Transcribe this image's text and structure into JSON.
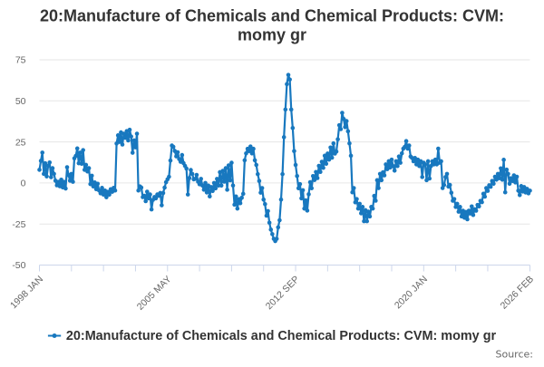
{
  "chart": {
    "title": "20:Manufacture of Chemicals and Chemical Products: CVM: momy gr",
    "title_lines": [
      "20:Manufacture of Chemicals and Chemical Products: CVM:",
      "momy gr"
    ],
    "legend": {
      "label": "20:Manufacture of Chemicals and Chemical Products: CVM: momy gr"
    },
    "source_label": "Source:"
  },
  "chart_data": {
    "type": "line",
    "title": "20:Manufacture of Chemicals and Chemical Products: CVM: momy gr",
    "series": [
      {
        "name": "20:Manufacture of Chemicals and Chemical Products: CVM: momy gr",
        "values": [
          8,
          13.5,
          18.5,
          5.5,
          12,
          4,
          10.5,
          12.5,
          3.5,
          9,
          5.5,
          1.4,
          -1.4,
          0.7,
          -2,
          2,
          -2.7,
          0.7,
          -3.4,
          9.6,
          4.8,
          1.4,
          5.5,
          0.7,
          15,
          16.5,
          21,
          12,
          18.5,
          11.7,
          20,
          8,
          11,
          7,
          9,
          -0.7,
          4.4,
          -2.1,
          0.3,
          -3.8,
          -0.5,
          -4.6,
          -6.3,
          -3,
          -7.1,
          -4.6,
          -8.7,
          -5.4,
          -7.1,
          -3.8,
          -5.4,
          -3,
          -4.6,
          24,
          29,
          25,
          30.8,
          23.4,
          30,
          27.5,
          31.6,
          25.9,
          32.4,
          28.3,
          18.4,
          25.9,
          21.7,
          30,
          -4.6,
          -2.1,
          -2.8,
          -8.6,
          -7.8,
          -11.1,
          -5.3,
          -9.4,
          -7,
          -16.1,
          -10.3,
          -8.6,
          -9.4,
          -7,
          -7.8,
          -6.1,
          -13.6,
          -6.1,
          -2.8,
          0.5,
          2.2,
          3.8,
          13.7,
          22.8,
          22,
          19.5,
          16.2,
          18.7,
          14.6,
          12.9,
          17,
          12.1,
          10.4,
          8.8,
          -7,
          3,
          7.9,
          5.5,
          2.2,
          2.5,
          4.9,
          0.8,
          -0.8,
          2.5,
          -1.6,
          -4.1,
          0,
          -5.8,
          -1.6,
          -8.2,
          -2.5,
          -4.9,
          0,
          -3.3,
          2.5,
          -1.6,
          6.6,
          -1.6,
          7.4,
          0.8,
          9,
          -4.1,
          10.7,
          1.6,
          12.3,
          -1.6,
          -13.2,
          -8.2,
          -15.6,
          -9.9,
          -12.3,
          -9,
          -6.6,
          13.8,
          18,
          20.8,
          19.4,
          22.2,
          18,
          20.8,
          13.8,
          11,
          5.4,
          1.2,
          -5.9,
          -3.1,
          -10.1,
          -12.9,
          -19.9,
          -17.1,
          -24.2,
          -28.4,
          -31.2,
          -34,
          -35.4,
          -34,
          -27,
          -22.7,
          -10.1,
          5.4,
          27.9,
          44.7,
          60.2,
          65.8,
          63,
          44.7,
          33.5,
          19.4,
          11,
          4.2,
          -3.2,
          -0.7,
          -9.4,
          -4.4,
          -15.6,
          -10.6,
          -16.8,
          -6.9,
          0.5,
          -3.2,
          4.2,
          1.8,
          6.7,
          3,
          10.4,
          6.7,
          12.9,
          9.2,
          16.6,
          11.7,
          17.9,
          14.2,
          21.6,
          15.4,
          24.1,
          17.9,
          19.1,
          26.6,
          35.2,
          32.8,
          42.7,
          39,
          34,
          37.7,
          31.5,
          24.1,
          16.6,
          -5.7,
          -3.1,
          -11.8,
          -9.8,
          -15.6,
          -12.7,
          -18.5,
          -14.6,
          -23.3,
          -16.6,
          -23.3,
          -17.5,
          -20.4,
          -14.6,
          -15.6,
          -7.9,
          -10.8,
          1.7,
          -3.1,
          5.5,
          1.7,
          6.5,
          4.6,
          11.3,
          8.4,
          13.2,
          9.4,
          14.2,
          10.3,
          7.5,
          13.2,
          10.3,
          16.1,
          12.3,
          18,
          20.9,
          22,
          25.5,
          20.9,
          22.8,
          16.1,
          15.2,
          13.2,
          15.2,
          11.3,
          14.2,
          10.3,
          13.2,
          3.6,
          12.3,
          11.3,
          1.7,
          13.2,
          2.7,
          10.3,
          13.2,
          11.3,
          14.2,
          11.3,
          20.9,
          12.3,
          13.2,
          -3.1,
          -1.2,
          3.6,
          5.5,
          -2.2,
          -1.2,
          -6,
          -10.8,
          -9.8,
          -14.6,
          -12.7,
          -17.5,
          -14.6,
          -20.4,
          -16.9,
          -21.2,
          -17.7,
          -22.1,
          -16.9,
          -18.6,
          -14.3,
          -19.5,
          -16,
          -16.9,
          -13.4,
          -14.3,
          -10.9,
          -11.7,
          -6.6,
          -8.3,
          -3.1,
          -4.8,
          -1.4,
          -2.3,
          1.2,
          -0.5,
          3.8,
          2,
          5.5,
          2.9,
          8.9,
          2,
          14.1,
          -5.7,
          8.1,
          5.5,
          -0.5,
          2.9,
          1.2,
          4.6,
          0.3,
          3.8,
          -4.7,
          -7.4,
          -1.9,
          -5.2,
          -2.5,
          -5.8,
          -3.6,
          -6.3,
          -4.7
        ]
      }
    ],
    "x_start": "1998 JAN",
    "x_end": "2026 FEB",
    "x_frequency": "monthly",
    "x_tick_labels": [
      {
        "index": 0,
        "label": "1998 JAN"
      },
      {
        "index": 88,
        "label": "2005 MAY"
      },
      {
        "index": 176,
        "label": "2012 SEP"
      },
      {
        "index": 264,
        "label": "2020 JAN"
      },
      {
        "index": 337,
        "label": "2026 FEB"
      }
    ],
    "x_minor_tick_interval": 22,
    "y_ticks": [
      -50,
      -25,
      0,
      25,
      50,
      75
    ],
    "ylim": [
      -50,
      75
    ],
    "grid": true,
    "legend_position": "bottom",
    "colors": {
      "series": "#1878bf",
      "grid": "#e6e6e6",
      "axis": "#ccd6eb",
      "axis_label": "#666666",
      "title": "#333333",
      "legend_label": "#333333",
      "source": "#666666"
    }
  }
}
